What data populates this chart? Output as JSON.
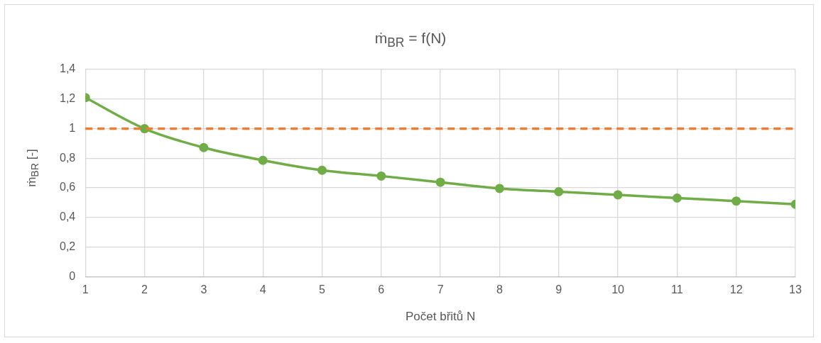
{
  "chart_data": {
    "type": "line",
    "title": "ṁ$_{BR}$ = f(N)",
    "xlabel": "Počet břitů N",
    "ylabel": "ṁ$_{BR}$ [-]",
    "x": [
      1,
      2,
      3,
      4,
      5,
      6,
      7,
      8,
      9,
      10,
      11,
      12,
      13
    ],
    "series": [
      {
        "color": "#70ad47",
        "values": [
          1.21,
          1.0,
          0.872,
          0.786,
          0.719,
          0.68,
          0.638,
          0.596,
          0.574,
          0.553,
          0.531,
          0.511,
          0.489
        ]
      }
    ],
    "ref_lines": [
      {
        "axis": "y",
        "value": 1,
        "label": null,
        "color": "#ed7d31",
        "line_style": "dashed"
      }
    ],
    "xlim": [
      1,
      13
    ],
    "xticks": [
      1,
      2,
      3,
      4,
      5,
      6,
      7,
      8,
      9,
      10,
      11,
      12,
      13
    ],
    "ylim": [
      0,
      1.4
    ],
    "yticks": [
      0,
      {
        "value": 0.2,
        "label": "0,2"
      },
      {
        "value": 0.4,
        "label": "0,4"
      },
      {
        "value": 0.6,
        "label": "0,6"
      },
      {
        "value": 0.8,
        "label": "0,8"
      },
      1,
      {
        "value": 1.2,
        "label": "1,2"
      },
      {
        "value": 1.4,
        "label": "1,4"
      }
    ],
    "grid": true,
    "legend": false,
    "marker": "circle",
    "line_style": "solid"
  }
}
